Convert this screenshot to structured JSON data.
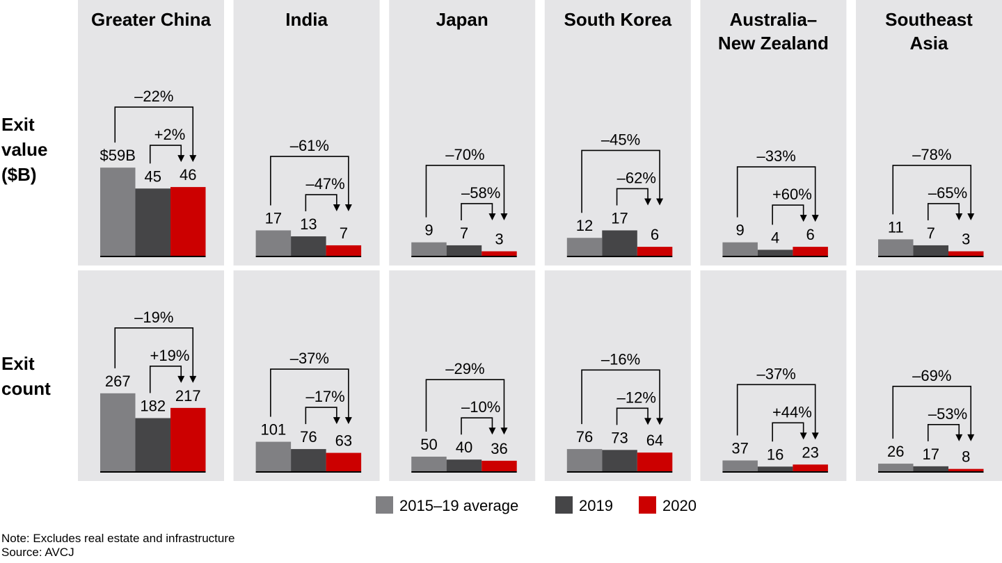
{
  "chart_data": {
    "type": "bar",
    "legend": [
      {
        "name": "2015–19 average",
        "color": "#808083"
      },
      {
        "name": "2019",
        "color": "#454547"
      },
      {
        "name": "2020",
        "color": "#cc0000"
      }
    ],
    "row_labels": [
      {
        "lines": [
          "Exit",
          "value",
          "($B)"
        ]
      },
      {
        "lines": [
          "Exit",
          "count"
        ]
      }
    ],
    "regions": [
      {
        "name_lines": [
          "Greater China"
        ],
        "value": {
          "values": [
            59,
            45,
            46
          ],
          "labels": [
            "$59B",
            "45",
            "46"
          ],
          "change_long": "–22%",
          "change_short": "+2%"
        },
        "count": {
          "values": [
            267,
            182,
            217
          ],
          "labels": [
            "267",
            "182",
            "217"
          ],
          "change_long": "–19%",
          "change_short": "+19%"
        }
      },
      {
        "name_lines": [
          "India"
        ],
        "value": {
          "values": [
            17,
            13,
            7
          ],
          "labels": [
            "17",
            "13",
            "7"
          ],
          "change_long": "–61%",
          "change_short": "–47%"
        },
        "count": {
          "values": [
            101,
            76,
            63
          ],
          "labels": [
            "101",
            "76",
            "63"
          ],
          "change_long": "–37%",
          "change_short": "–17%"
        }
      },
      {
        "name_lines": [
          "Japan"
        ],
        "value": {
          "values": [
            9,
            7,
            3
          ],
          "labels": [
            "9",
            "7",
            "3"
          ],
          "change_long": "–70%",
          "change_short": "–58%"
        },
        "count": {
          "values": [
            50,
            40,
            36
          ],
          "labels": [
            "50",
            "40",
            "36"
          ],
          "change_long": "–29%",
          "change_short": "–10%"
        }
      },
      {
        "name_lines": [
          "South Korea"
        ],
        "value": {
          "values": [
            12,
            17,
            6
          ],
          "labels": [
            "12",
            "17",
            "6"
          ],
          "change_long": "–45%",
          "change_short": "–62%"
        },
        "count": {
          "values": [
            76,
            73,
            64
          ],
          "labels": [
            "76",
            "73",
            "64"
          ],
          "change_long": "–16%",
          "change_short": "–12%"
        }
      },
      {
        "name_lines": [
          "Australia–",
          "New Zealand"
        ],
        "value": {
          "values": [
            9,
            4,
            6
          ],
          "labels": [
            "9",
            "4",
            "6"
          ],
          "change_long": "–33%",
          "change_short": "+60%"
        },
        "count": {
          "values": [
            37,
            16,
            23
          ],
          "labels": [
            "37",
            "16",
            "23"
          ],
          "change_long": "–37%",
          "change_short": "+44%"
        }
      },
      {
        "name_lines": [
          "Southeast",
          "Asia"
        ],
        "value": {
          "values": [
            11,
            7,
            3
          ],
          "labels": [
            "11",
            "7",
            "3"
          ],
          "change_long": "–78%",
          "change_short": "–65%"
        },
        "count": {
          "values": [
            26,
            17,
            8
          ],
          "labels": [
            "26",
            "17",
            "8"
          ],
          "change_long": "–69%",
          "change_short": "–53%"
        }
      }
    ]
  },
  "notes": {
    "note": "Note: Excludes real estate and infrastructure",
    "source": "Source: AVCJ"
  }
}
